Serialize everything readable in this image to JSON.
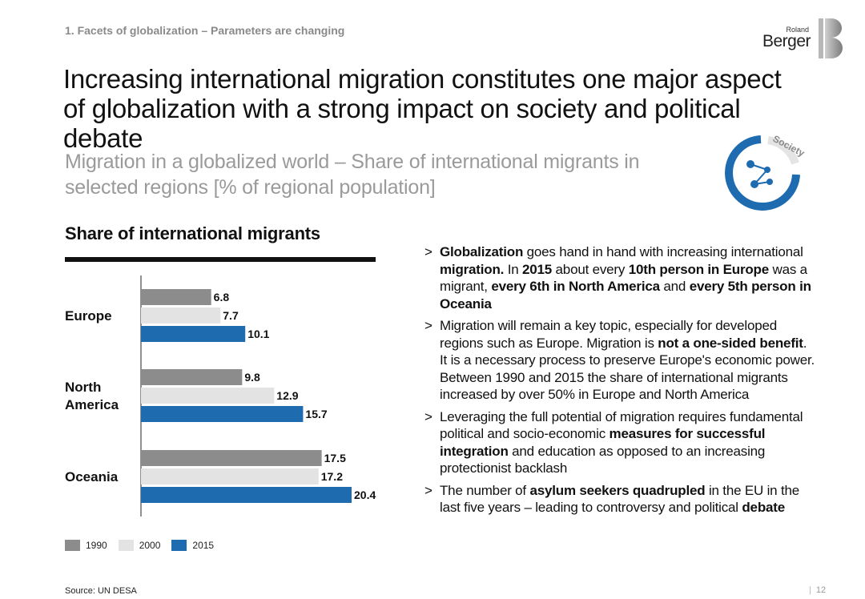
{
  "header": {
    "section_label": "1. Facets of globalization – Parameters are changing",
    "logo_small": "Roland",
    "logo_main": "Berger",
    "title": "Increasing international migration constitutes one major aspect of globalization with a strong impact on society and political debate",
    "subtitle": "Migration in a globalized world – Share of international migrants in selected regions [% of regional population]"
  },
  "badge": {
    "label": "Society",
    "icon": "network-icon",
    "color": "#1f6bb0"
  },
  "chart_heading": "Share of international migrants",
  "chart_data": {
    "type": "bar",
    "orientation": "horizontal",
    "categories": [
      "Europe",
      "North America",
      "Oceania"
    ],
    "series": [
      {
        "name": "1990",
        "values": [
          6.8,
          9.8,
          17.5
        ],
        "color": "#8c8c8c"
      },
      {
        "name": "2000",
        "values": [
          7.7,
          12.9,
          17.2
        ],
        "color": "#e3e3e3"
      },
      {
        "name": "2015",
        "values": [
          10.1,
          15.7,
          20.4
        ],
        "color": "#1f6bb0"
      }
    ],
    "xlim": [
      0,
      20.4
    ],
    "grid": false,
    "legend": "bottom-left"
  },
  "bullets": [
    [
      {
        "t": "Globalization",
        "b": true
      },
      {
        "t": " goes hand in hand with increasing international ",
        "b": false
      },
      {
        "t": "migration.",
        "b": true
      },
      {
        "t": " In ",
        "b": false
      },
      {
        "t": "2015",
        "b": true
      },
      {
        "t": " about every ",
        "b": false
      },
      {
        "t": "10th person in Europe",
        "b": true
      },
      {
        "t": " was a migrant, ",
        "b": false
      },
      {
        "t": "every 6th in North America",
        "b": true
      },
      {
        "t": " and ",
        "b": false
      },
      {
        "t": "every 5th person in Oceania",
        "b": true
      }
    ],
    [
      {
        "t": "Migration will remain a key topic, especially for developed regions such as Europe. Migration is ",
        "b": false
      },
      {
        "t": "not a one-sided benefit",
        "b": true
      },
      {
        "t": ". It is a necessary process to preserve Europe's economic power. Between 1990 and 2015 the share of international migrants increased by over 50% in Europe and North America",
        "b": false
      }
    ],
    [
      {
        "t": "Leveraging the full potential of migration requires fundamental political and socio-economic ",
        "b": false
      },
      {
        "t": "measures for successful integration",
        "b": true
      },
      {
        "t": " and education as opposed to an increasing protectionist backlash",
        "b": false
      }
    ],
    [
      {
        "t": "The number of ",
        "b": false
      },
      {
        "t": "asylum seekers quadrupled",
        "b": true
      },
      {
        "t": " in the EU in the last five years – leading to controversy and political ",
        "b": false
      },
      {
        "t": "debate",
        "b": true
      }
    ]
  ],
  "bullet_marker": ">",
  "source": "Source: UN DESA",
  "page_number": "12"
}
